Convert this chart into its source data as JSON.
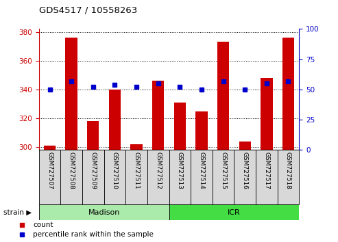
{
  "title": "GDS4517 / 10558263",
  "samples": [
    "GSM727507",
    "GSM727508",
    "GSM727509",
    "GSM727510",
    "GSM727511",
    "GSM727512",
    "GSM727513",
    "GSM727514",
    "GSM727515",
    "GSM727516",
    "GSM727517",
    "GSM727518"
  ],
  "counts": [
    301,
    376,
    318,
    340,
    302,
    346,
    331,
    325,
    373,
    304,
    348,
    376
  ],
  "percentiles": [
    50,
    57,
    52,
    54,
    52,
    55,
    52,
    50,
    57,
    50,
    55,
    57
  ],
  "ylim_left": [
    298,
    382
  ],
  "ylim_right": [
    0,
    100
  ],
  "yticks_left": [
    300,
    320,
    340,
    360,
    380
  ],
  "yticks_right": [
    0,
    25,
    50,
    75,
    100
  ],
  "bar_color": "#cc0000",
  "percentile_color": "#0000cc",
  "grid_color": "#000000",
  "bg_color": "#ffffff",
  "plot_bg": "#ffffff",
  "madison_color": "#aaeaaa",
  "icr_color": "#44dd44",
  "bar_width": 0.55,
  "legend_labels": [
    "count",
    "percentile rank within the sample"
  ]
}
